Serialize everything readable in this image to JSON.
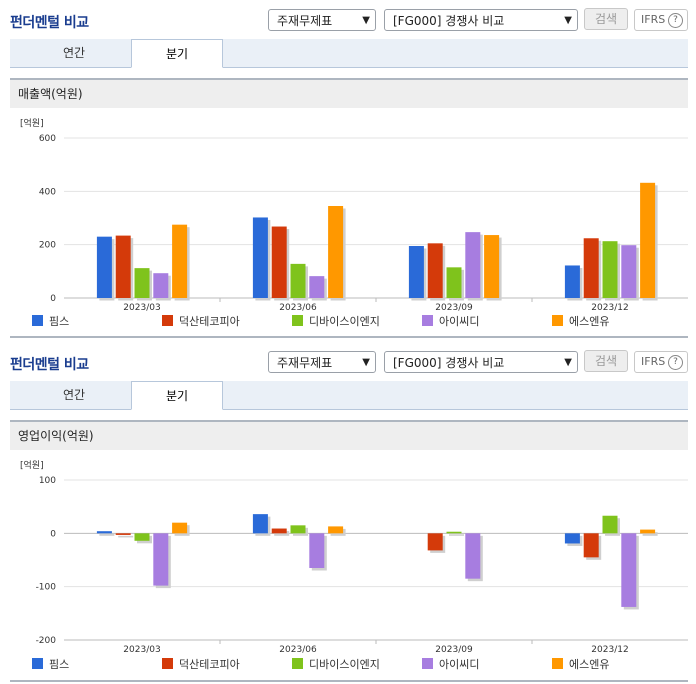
{
  "panels": [
    {
      "title": "펀더멘털 비교",
      "select1": "주재무제표",
      "select2": "[FG000] 경쟁사 비교",
      "search_label": "검색",
      "ifrs_label": "IFRS",
      "ifrs_help": "?",
      "tabs": [
        {
          "label": "연간",
          "active": false
        },
        {
          "label": "분기",
          "active": true
        }
      ],
      "chart_title": "매출액(억원)",
      "unit": "[억원]"
    },
    {
      "title": "펀더멘털 비교",
      "select1": "주재무제표",
      "select2": "[FG000] 경쟁사 비교",
      "search_label": "검색",
      "ifrs_label": "IFRS",
      "ifrs_help": "?",
      "tabs": [
        {
          "label": "연간",
          "active": false
        },
        {
          "label": "분기",
          "active": true
        }
      ],
      "chart_title": "영업이익(억원)",
      "unit": "[억원]"
    }
  ],
  "chart_data": [
    {
      "type": "bar",
      "title": "매출액(억원)",
      "ylabel": "[억원]",
      "categories": [
        "2023/03",
        "2023/06",
        "2023/09",
        "2023/12"
      ],
      "ylim": [
        0,
        600
      ],
      "yticks": [
        0,
        200,
        400,
        600
      ],
      "series": [
        {
          "name": "핌스",
          "color": "#2a6ad8",
          "values": [
            230,
            302,
            195,
            122
          ]
        },
        {
          "name": "덕산테코피아",
          "color": "#d43a0a",
          "values": [
            234,
            268,
            205,
            224
          ]
        },
        {
          "name": "디바이스이엔지",
          "color": "#7fc31c",
          "values": [
            112,
            128,
            115,
            213
          ]
        },
        {
          "name": "아이씨디",
          "color": "#a77de0",
          "values": [
            93,
            82,
            247,
            198
          ]
        },
        {
          "name": "에스엔유",
          "color": "#ff9800",
          "values": [
            275,
            345,
            236,
            432
          ]
        }
      ]
    },
    {
      "type": "bar",
      "title": "영업이익(억원)",
      "ylabel": "[억원]",
      "categories": [
        "2023/03",
        "2023/06",
        "2023/09",
        "2023/12"
      ],
      "ylim": [
        -200,
        100
      ],
      "yticks": [
        -200,
        -100,
        0,
        100
      ],
      "series": [
        {
          "name": "핌스",
          "color": "#2a6ad8",
          "values": [
            4,
            36,
            0,
            -19
          ]
        },
        {
          "name": "덕산테코피아",
          "color": "#d43a0a",
          "values": [
            -3,
            9,
            -32,
            -45
          ]
        },
        {
          "name": "디바이스이엔지",
          "color": "#7fc31c",
          "values": [
            -14,
            15,
            3,
            33
          ]
        },
        {
          "name": "아이씨디",
          "color": "#a77de0",
          "values": [
            -98,
            -65,
            -85,
            -138
          ]
        },
        {
          "name": "에스엔유",
          "color": "#ff9800",
          "values": [
            20,
            13,
            0,
            7
          ]
        }
      ]
    }
  ]
}
